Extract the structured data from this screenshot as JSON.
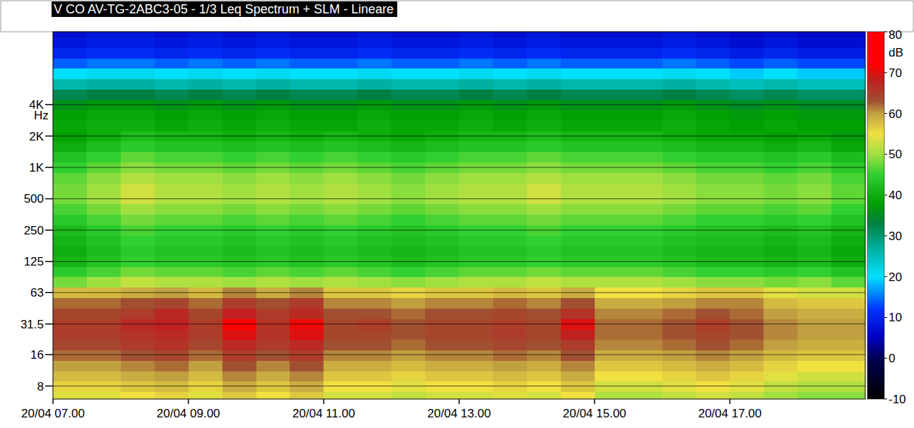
{
  "chart_data": {
    "type": "heatmap",
    "title": "V CO AV-TG-2ABC3-05 - 1/3 Leq Spectrum + SLM - Lineare",
    "y_label": "Hz",
    "log": "y",
    "grid": true,
    "x": [
      7,
      7.5,
      8,
      8.5,
      9,
      9.5,
      10,
      10.5,
      11,
      11.5,
      12,
      12.5,
      13,
      13.5,
      14,
      14.5,
      15,
      15.5,
      16,
      16.5,
      17,
      17.5,
      18,
      18.5
    ],
    "y": [
      6.3,
      8,
      10,
      12.5,
      16,
      20,
      25,
      31.5,
      40,
      50,
      63,
      80,
      100,
      125,
      160,
      200,
      250,
      315,
      400,
      500,
      630,
      800,
      1000,
      1250,
      1600,
      2000,
      2500,
      3150,
      4000,
      5000,
      6300,
      8000,
      10000,
      12500,
      16000,
      20000
    ],
    "xlim": [
      7,
      19
    ],
    "ylim": [
      6,
      20000
    ],
    "xticks": [
      {
        "value": 7,
        "label": "20/04 07.00"
      },
      {
        "value": 9,
        "label": "20/04 09.00"
      },
      {
        "value": 11,
        "label": "20/04 11.00"
      },
      {
        "value": 13,
        "label": "20/04 13.00"
      },
      {
        "value": 15,
        "label": "20/04 15.00"
      },
      {
        "value": 17,
        "label": "20/04 17.00"
      }
    ],
    "yticks": [
      8,
      16,
      31.5,
      63,
      125,
      250,
      500,
      {
        "value": 1000,
        "label": "1K"
      },
      {
        "value": 2000,
        "label": "2K"
      },
      {
        "value": 4000,
        "label": "4K"
      }
    ],
    "colorbar": {
      "label": "dB",
      "range": [
        -10,
        80
      ],
      "ticks": [
        -10,
        0,
        10,
        20,
        30,
        40,
        50,
        60,
        70,
        80
      ]
    },
    "values": [
      [
        54,
        54,
        55,
        56,
        54,
        57,
        55,
        57,
        53,
        53,
        52,
        53,
        53,
        54,
        53,
        55,
        51,
        51,
        52,
        53,
        52,
        50,
        49,
        49
      ],
      [
        56,
        56,
        57,
        58,
        56,
        59,
        57,
        59,
        55,
        55,
        54,
        55,
        55,
        56,
        55,
        57,
        53,
        53,
        54,
        55,
        54,
        52,
        51,
        51
      ],
      [
        58,
        58,
        59,
        60,
        58,
        61,
        59,
        61,
        57,
        57,
        56,
        57,
        57,
        58,
        57,
        59,
        55,
        55,
        56,
        57,
        56,
        54,
        53,
        53
      ],
      [
        60,
        60,
        61,
        62,
        60,
        63,
        61,
        63,
        59,
        59,
        58,
        59,
        59,
        60,
        59,
        61,
        57,
        57,
        58,
        59,
        58,
        56,
        55,
        55
      ],
      [
        62,
        62,
        63,
        64,
        62,
        65,
        63,
        65,
        61,
        61,
        60,
        61,
        61,
        62,
        61,
        63,
        59,
        59,
        60,
        61,
        60,
        58,
        57,
        57
      ],
      [
        64,
        64,
        65,
        66,
        64,
        67,
        65,
        67,
        63,
        63,
        62,
        63,
        63,
        64,
        63,
        65,
        61,
        61,
        62,
        63,
        62,
        60,
        59,
        59
      ],
      [
        65,
        65,
        66,
        67,
        65,
        70,
        66,
        70,
        64,
        64,
        63,
        64,
        64,
        65,
        64,
        68,
        62,
        62,
        63,
        64,
        63,
        61,
        60,
        60
      ],
      [
        65,
        65,
        67,
        68,
        65,
        72,
        66,
        71,
        64,
        65,
        63,
        64,
        64,
        65,
        64,
        70,
        62,
        62,
        63,
        65,
        63,
        61,
        60,
        60
      ],
      [
        64,
        64,
        65,
        67,
        64,
        68,
        65,
        67,
        63,
        63,
        62,
        63,
        63,
        64,
        63,
        66,
        61,
        61,
        62,
        63,
        62,
        60,
        59,
        59
      ],
      [
        62,
        62,
        63,
        64,
        62,
        65,
        63,
        65,
        61,
        61,
        60,
        61,
        61,
        62,
        61,
        63,
        59,
        59,
        60,
        61,
        61,
        58,
        57,
        57
      ],
      [
        58,
        58,
        59,
        60,
        58,
        61,
        59,
        61,
        57,
        57,
        56,
        57,
        57,
        58,
        57,
        59,
        55,
        55,
        56,
        57,
        57,
        54,
        53,
        53
      ],
      [
        48,
        50,
        52,
        51,
        51,
        50,
        51,
        50,
        51,
        50,
        49,
        50,
        51,
        51,
        52,
        51,
        51,
        51,
        50,
        49,
        49,
        48,
        49,
        47
      ],
      [
        44,
        46,
        48,
        47,
        47,
        46,
        47,
        46,
        47,
        46,
        45,
        46,
        47,
        47,
        48,
        47,
        47,
        47,
        46,
        45,
        45,
        44,
        45,
        43
      ],
      [
        41,
        43,
        45,
        44,
        44,
        43,
        44,
        43,
        44,
        43,
        42,
        43,
        44,
        44,
        45,
        44,
        44,
        44,
        43,
        42,
        42,
        41,
        42,
        40
      ],
      [
        40,
        42,
        44,
        43,
        43,
        42,
        43,
        42,
        43,
        42,
        41,
        42,
        43,
        43,
        44,
        43,
        43,
        43,
        42,
        41,
        41,
        40,
        41,
        39
      ],
      [
        41,
        43,
        45,
        44,
        44,
        43,
        44,
        43,
        44,
        43,
        42,
        43,
        44,
        44,
        45,
        44,
        44,
        44,
        43,
        42,
        42,
        41,
        42,
        40
      ],
      [
        42,
        44,
        46,
        45,
        45,
        44,
        45,
        44,
        45,
        44,
        43,
        44,
        45,
        45,
        46,
        45,
        45,
        45,
        44,
        43,
        43,
        42,
        43,
        41
      ],
      [
        44,
        46,
        48,
        47,
        47,
        46,
        47,
        46,
        47,
        46,
        45,
        46,
        47,
        47,
        48,
        47,
        47,
        47,
        46,
        45,
        45,
        44,
        45,
        43
      ],
      [
        46,
        48,
        50,
        49,
        49,
        48,
        49,
        48,
        49,
        48,
        47,
        48,
        49,
        49,
        50,
        49,
        49,
        49,
        48,
        47,
        47,
        46,
        47,
        45
      ],
      [
        48,
        50,
        53,
        51,
        51,
        50,
        51,
        50,
        51,
        50,
        49,
        50,
        51,
        51,
        53,
        51,
        51,
        51,
        50,
        49,
        49,
        48,
        49,
        47
      ],
      [
        48,
        50,
        53,
        51,
        51,
        50,
        51,
        50,
        51,
        50,
        49,
        50,
        51,
        51,
        53,
        51,
        51,
        51,
        50,
        49,
        49,
        48,
        49,
        47
      ],
      [
        47,
        49,
        51,
        50,
        50,
        49,
        50,
        49,
        50,
        49,
        48,
        49,
        50,
        50,
        51,
        50,
        50,
        50,
        49,
        48,
        48,
        47,
        48,
        46
      ],
      [
        45,
        47,
        49,
        48,
        48,
        47,
        48,
        47,
        48,
        47,
        46,
        47,
        48,
        48,
        49,
        48,
        48,
        48,
        47,
        46,
        46,
        45,
        46,
        44
      ],
      [
        43,
        45,
        47,
        46,
        46,
        45,
        46,
        45,
        46,
        45,
        44,
        45,
        46,
        46,
        47,
        46,
        46,
        46,
        45,
        44,
        44,
        43,
        44,
        42
      ],
      [
        40,
        42,
        44,
        43,
        43,
        42,
        43,
        42,
        43,
        42,
        41,
        42,
        43,
        43,
        44,
        43,
        43,
        43,
        42,
        41,
        41,
        40,
        41,
        39
      ],
      [
        38,
        40,
        42,
        41,
        41,
        40,
        41,
        40,
        41,
        40,
        39,
        40,
        41,
        41,
        42,
        41,
        41,
        41,
        40,
        39,
        39,
        38,
        39,
        37
      ],
      [
        39,
        40,
        40,
        39,
        40,
        39,
        40,
        39,
        39,
        40,
        39,
        39,
        40,
        39,
        40,
        39,
        39,
        39,
        40,
        39,
        38,
        39,
        38,
        38
      ],
      [
        38,
        39,
        39,
        38,
        39,
        38,
        39,
        38,
        38,
        39,
        38,
        38,
        39,
        38,
        39,
        38,
        38,
        38,
        39,
        38,
        37,
        38,
        37,
        37
      ],
      [
        36,
        37,
        37,
        36,
        37,
        36,
        37,
        36,
        36,
        37,
        36,
        36,
        37,
        36,
        37,
        36,
        36,
        36,
        37,
        36,
        35,
        36,
        35,
        35
      ],
      [
        32,
        33,
        33,
        32,
        33,
        32,
        33,
        32,
        32,
        33,
        32,
        32,
        33,
        32,
        33,
        32,
        32,
        32,
        33,
        32,
        31,
        32,
        31,
        31
      ],
      [
        26,
        27,
        27,
        26,
        27,
        26,
        27,
        26,
        26,
        27,
        26,
        26,
        27,
        26,
        27,
        26,
        26,
        26,
        27,
        26,
        25,
        26,
        25,
        25
      ],
      [
        20,
        21,
        21,
        20,
        21,
        20,
        21,
        20,
        20,
        21,
        20,
        20,
        21,
        20,
        21,
        20,
        20,
        20,
        21,
        20,
        19,
        20,
        19,
        19
      ],
      [
        14,
        15,
        15,
        14,
        15,
        14,
        15,
        14,
        14,
        15,
        14,
        14,
        15,
        14,
        15,
        14,
        14,
        14,
        15,
        14,
        13,
        14,
        13,
        13
      ],
      [
        10,
        11,
        11,
        10,
        11,
        10,
        11,
        10,
        10,
        11,
        10,
        10,
        11,
        10,
        11,
        10,
        10,
        10,
        11,
        10,
        9,
        10,
        9,
        9
      ],
      [
        8,
        9,
        9,
        8,
        9,
        8,
        9,
        8,
        8,
        9,
        8,
        8,
        9,
        8,
        9,
        8,
        8,
        8,
        9,
        8,
        7,
        8,
        7,
        7
      ],
      [
        7,
        8,
        8,
        7,
        8,
        7,
        8,
        7,
        7,
        8,
        7,
        7,
        8,
        7,
        8,
        7,
        7,
        7,
        8,
        7,
        6,
        7,
        6,
        6
      ]
    ]
  }
}
